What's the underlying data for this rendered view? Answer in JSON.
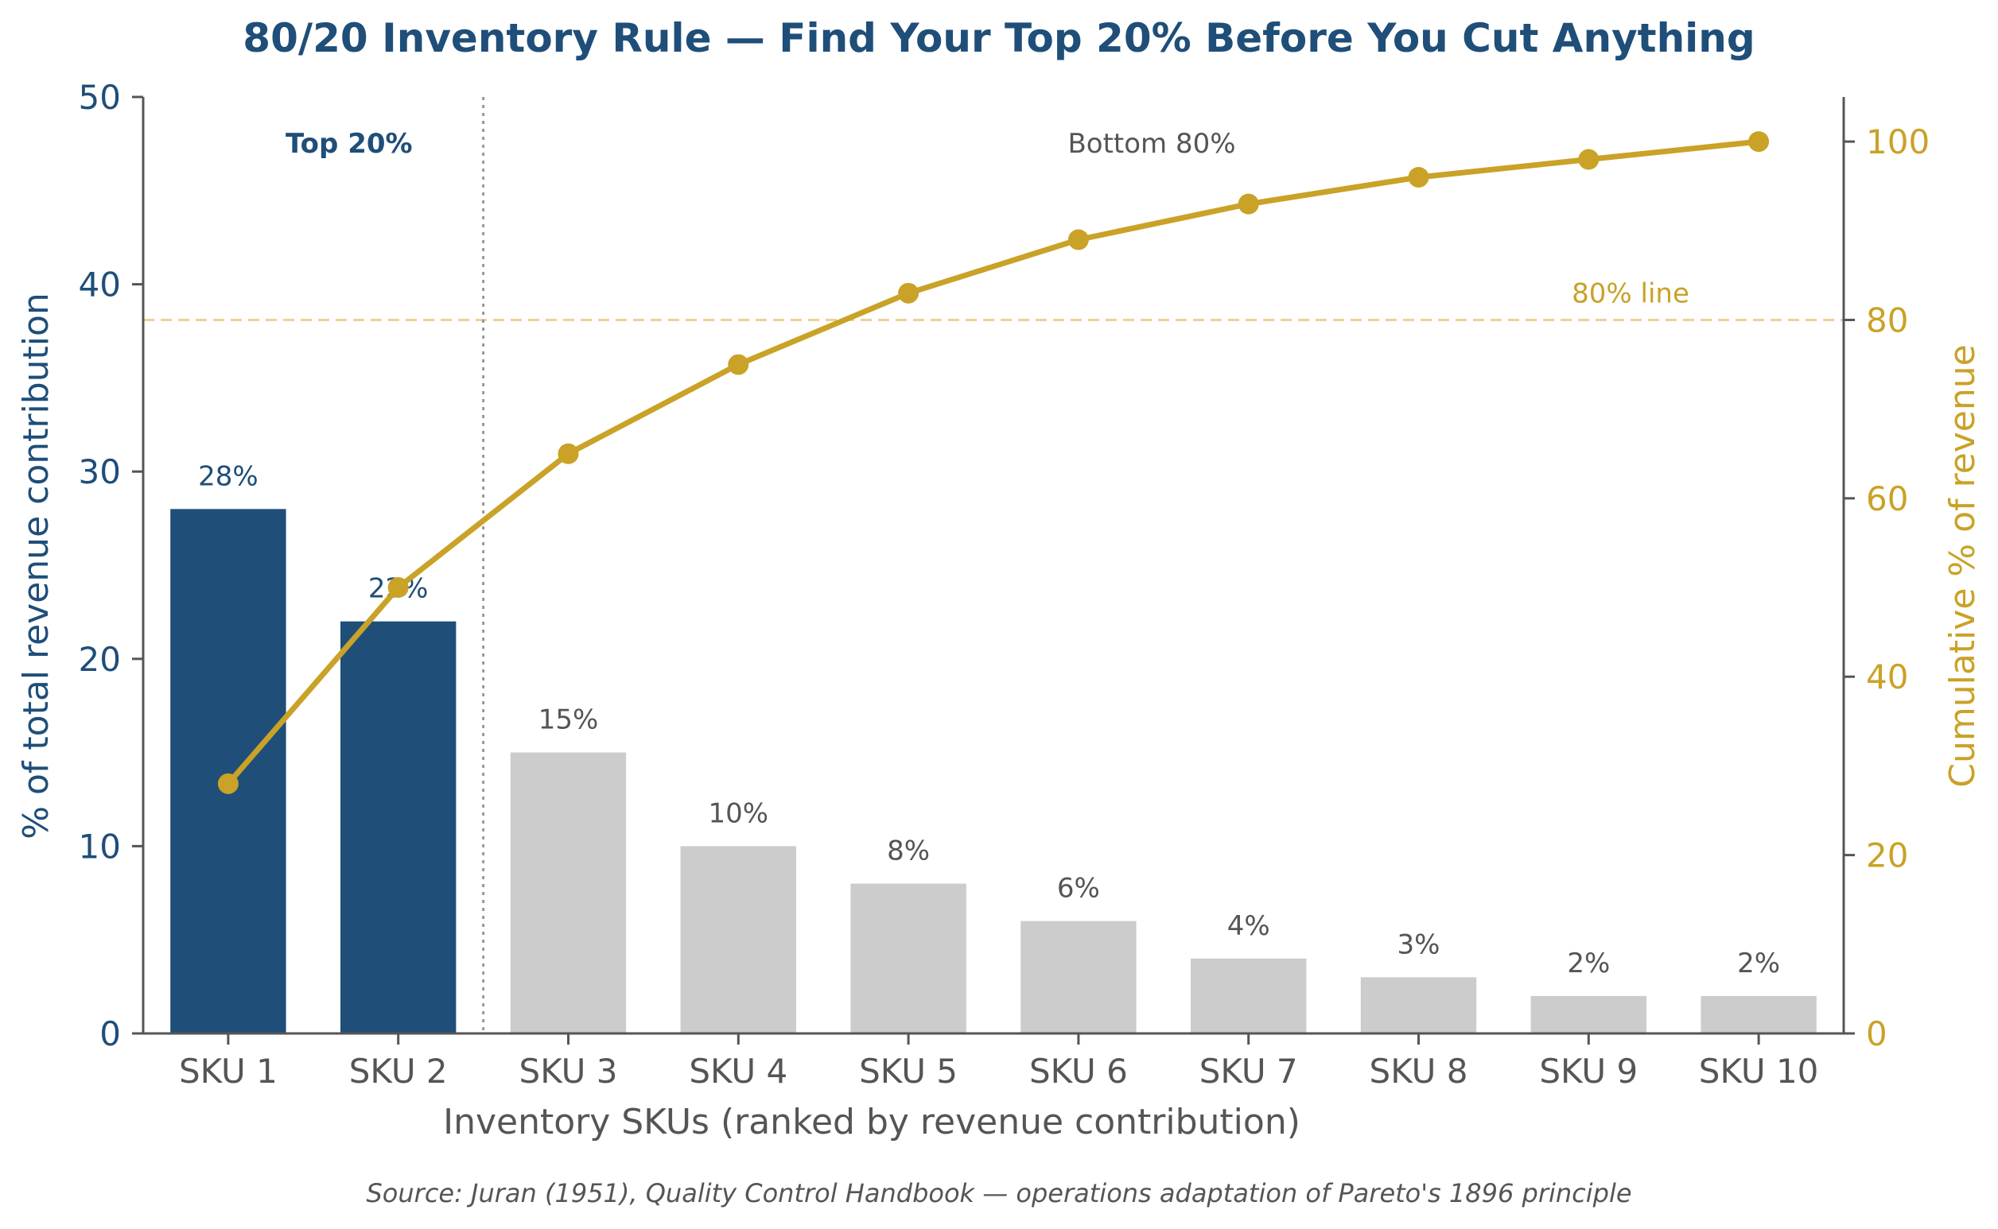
{
  "chart_data": {
    "type": "bar",
    "title": "80/20 Inventory Rule — Find Your Top 20% Before You Cut Anything",
    "xlabel": "Inventory SKUs (ranked by revenue contribution)",
    "ylabel": "% of total revenue contribution",
    "y2label": "Cumulative % of revenue",
    "categories": [
      "SKU 1",
      "SKU 2",
      "SKU 3",
      "SKU 4",
      "SKU 5",
      "SKU 6",
      "SKU 7",
      "SKU 8",
      "SKU 9",
      "SKU 10"
    ],
    "series": [
      {
        "type": "bar",
        "axis": "left",
        "values": [
          28,
          22,
          15,
          10,
          8,
          6,
          4,
          3,
          2,
          2
        ],
        "labels": [
          "28%",
          "22%",
          "15%",
          "10%",
          "8%",
          "6%",
          "4%",
          "3%",
          "2%",
          "2%"
        ],
        "highlight_count": 2
      },
      {
        "type": "line",
        "axis": "right",
        "values": [
          28,
          50,
          65,
          75,
          83,
          89,
          93,
          96,
          98,
          100
        ]
      }
    ],
    "ylim": [
      0,
      50
    ],
    "y2lim": [
      0,
      105
    ],
    "yticks": [
      "0",
      "10",
      "20",
      "30",
      "40",
      "50"
    ],
    "y2ticks": [
      "0",
      "20",
      "40",
      "60",
      "80",
      "100"
    ],
    "reference_line": {
      "axis": "right",
      "value": 80,
      "label": "80% line"
    },
    "divider_after_index": 1,
    "region_labels": {
      "top": "Top 20%",
      "bottom": "Bottom 80%"
    },
    "grid": false,
    "colors": {
      "primary": "#1f4e79",
      "muted_bar": "#cccccc",
      "cumulative": "#c9a227",
      "reference": "#ecd296",
      "text": "#555555",
      "axis": "#555555",
      "divider": "#999999"
    }
  },
  "footer": {
    "source": "Source: Juran (1951), Quality Control Handbook — operations adaptation of Pareto's 1896 principle"
  }
}
